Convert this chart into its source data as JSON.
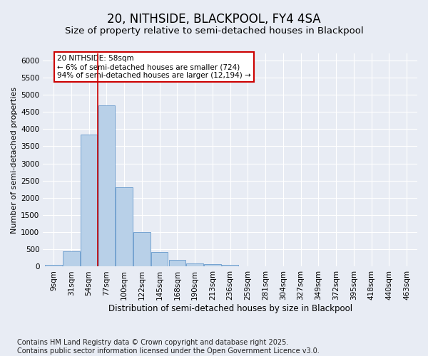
{
  "title1": "20, NITHSIDE, BLACKPOOL, FY4 4SA",
  "title2": "Size of property relative to semi-detached houses in Blackpool",
  "xlabel": "Distribution of semi-detached houses by size in Blackpool",
  "ylabel": "Number of semi-detached properties",
  "bins": [
    "9sqm",
    "31sqm",
    "54sqm",
    "77sqm",
    "100sqm",
    "122sqm",
    "145sqm",
    "168sqm",
    "190sqm",
    "213sqm",
    "236sqm",
    "259sqm",
    "281sqm",
    "304sqm",
    "327sqm",
    "349sqm",
    "372sqm",
    "395sqm",
    "418sqm",
    "440sqm",
    "463sqm"
  ],
  "values": [
    50,
    450,
    3850,
    4680,
    2300,
    1000,
    420,
    200,
    90,
    70,
    50,
    10,
    0,
    0,
    0,
    0,
    0,
    0,
    0,
    0,
    0
  ],
  "bar_color": "#b8d0e8",
  "bar_edge_color": "#6699cc",
  "vline_color": "#cc0000",
  "annotation_text": "20 NITHSIDE: 58sqm\n← 6% of semi-detached houses are smaller (724)\n94% of semi-detached houses are larger (12,194) →",
  "annotation_box_color": "#ffffff",
  "annotation_box_edge": "#cc0000",
  "ylim": [
    0,
    6200
  ],
  "yticks": [
    0,
    500,
    1000,
    1500,
    2000,
    2500,
    3000,
    3500,
    4000,
    4500,
    5000,
    5500,
    6000
  ],
  "footnote": "Contains HM Land Registry data © Crown copyright and database right 2025.\nContains public sector information licensed under the Open Government Licence v3.0.",
  "bg_color": "#e8ecf4",
  "plot_bg_color": "#e8ecf4",
  "grid_color": "#ffffff",
  "title1_fontsize": 12,
  "title2_fontsize": 9.5,
  "xlabel_fontsize": 8.5,
  "ylabel_fontsize": 8,
  "footnote_fontsize": 7,
  "annotation_fontsize": 7.5,
  "tick_fontsize": 7.5
}
